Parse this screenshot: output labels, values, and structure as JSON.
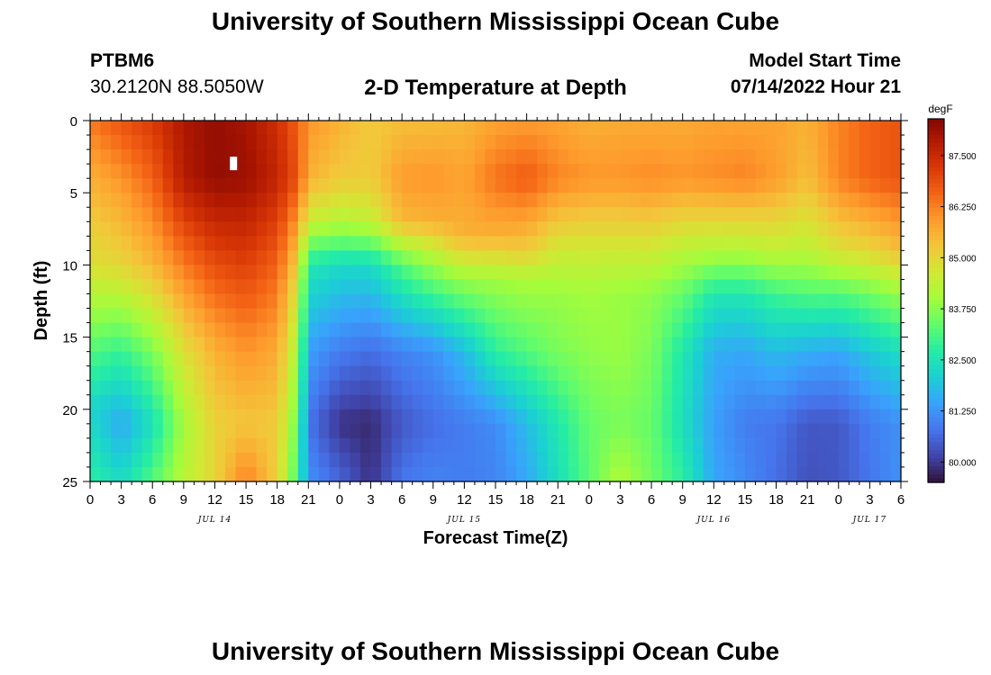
{
  "header": {
    "title": "University of Southern Mississippi Ocean Cube",
    "station_id": "PTBM6",
    "station_coords": "30.2120N  88.5050W",
    "plot_title": "2-D Temperature at Depth",
    "model_start_label": "Model Start Time",
    "model_start_value": "07/14/2022 Hour 21"
  },
  "footer": {
    "title": "University of Southern Mississippi Ocean Cube"
  },
  "chart_data": {
    "type": "heatmap",
    "title": "2-D Temperature at Depth",
    "xlabel": "Forecast Time(Z)",
    "ylabel": "Depth (ft)",
    "colorbar_label": "degF",
    "colorbar_ticks": [
      "87.500",
      "86.250",
      "85.000",
      "83.750",
      "82.500",
      "81.250",
      "80.000"
    ],
    "colorbar_values": [
      87.5,
      86.25,
      85.0,
      83.75,
      82.5,
      81.25,
      80.0
    ],
    "value_range": [
      79.5,
      88.5
    ],
    "x_tick_labels": [
      "0",
      "3",
      "6",
      "9",
      "12",
      "15",
      "18",
      "21",
      "0",
      "3",
      "6",
      "9",
      "12",
      "15",
      "18",
      "21",
      "0",
      "3",
      "6",
      "9",
      "12",
      "15",
      "18",
      "21",
      "0",
      "3",
      "6"
    ],
    "x_date_labels": [
      "JUL 14",
      "JUL 15",
      "JUL 16",
      "JUL 17"
    ],
    "x_date_tick_index": [
      4,
      12,
      20,
      25
    ],
    "y_tick_labels": [
      "0",
      "5",
      "10",
      "15",
      "20",
      "25"
    ],
    "ylim": [
      0,
      25
    ],
    "y_reversed": true,
    "colors": [
      "#30123b",
      "#4145ab",
      "#4675ed",
      "#39a2fc",
      "#1bcfd4",
      "#24eca6",
      "#61fc6c",
      "#a4fc3b",
      "#d1e834",
      "#f3c63a",
      "#fe9b2d",
      "#f36315",
      "#d93806",
      "#b11901",
      "#7a0403"
    ],
    "columns": [
      {
        "x": 0,
        "profile": [
          [
            0,
            86.3
          ],
          [
            4,
            85.6
          ],
          [
            10,
            84.8
          ],
          [
            16,
            83.2
          ],
          [
            20,
            82.2
          ],
          [
            25,
            82.8
          ]
        ]
      },
      {
        "x": 3,
        "profile": [
          [
            0,
            86.8
          ],
          [
            4,
            86.0
          ],
          [
            10,
            85.0
          ],
          [
            16,
            82.9
          ],
          [
            21,
            81.5
          ],
          [
            25,
            82.3
          ]
        ]
      },
      {
        "x": 6,
        "profile": [
          [
            0,
            87.2
          ],
          [
            4,
            86.6
          ],
          [
            10,
            85.5
          ],
          [
            16,
            83.6
          ],
          [
            21,
            82.4
          ],
          [
            25,
            83.2
          ]
        ]
      },
      {
        "x": 9,
        "profile": [
          [
            0,
            87.9
          ],
          [
            4,
            87.8
          ],
          [
            10,
            86.3
          ],
          [
            16,
            84.8
          ],
          [
            21,
            84.0
          ],
          [
            25,
            84.3
          ]
        ]
      },
      {
        "x": 12,
        "profile": [
          [
            0,
            88.2
          ],
          [
            4,
            88.2
          ],
          [
            10,
            86.9
          ],
          [
            16,
            85.6
          ],
          [
            21,
            85.1
          ],
          [
            25,
            85.0
          ]
        ]
      },
      {
        "x": 15,
        "profile": [
          [
            0,
            88.0
          ],
          [
            4,
            88.1
          ],
          [
            10,
            87.1
          ],
          [
            16,
            86.0
          ],
          [
            21,
            85.3
          ],
          [
            25,
            86.3
          ]
        ]
      },
      {
        "x": 18,
        "profile": [
          [
            0,
            87.4
          ],
          [
            4,
            87.6
          ],
          [
            10,
            86.6
          ],
          [
            16,
            85.7
          ],
          [
            21,
            85.2
          ],
          [
            25,
            85.1
          ]
        ]
      },
      {
        "x": 20,
        "profile": [
          [
            0,
            86.6
          ],
          [
            4,
            86.8
          ],
          [
            8,
            85.6
          ],
          [
            12,
            84.6
          ],
          [
            16,
            84.0
          ],
          [
            21,
            83.4
          ],
          [
            25,
            83.0
          ]
        ]
      },
      {
        "x": 21,
        "profile": [
          [
            0,
            86.0
          ],
          [
            4,
            85.6
          ],
          [
            7,
            84.5
          ],
          [
            10,
            82.6
          ],
          [
            16,
            81.4
          ],
          [
            21,
            80.8
          ],
          [
            25,
            81.2
          ]
        ]
      },
      {
        "x": 24,
        "profile": [
          [
            0,
            85.6
          ],
          [
            4,
            85.2
          ],
          [
            7,
            84.2
          ],
          [
            10,
            82.3
          ],
          [
            16,
            80.9
          ],
          [
            21,
            79.9
          ],
          [
            25,
            80.6
          ]
        ]
      },
      {
        "x": 27,
        "profile": [
          [
            0,
            85.2
          ],
          [
            4,
            85.2
          ],
          [
            7,
            84.4
          ],
          [
            10,
            82.3
          ],
          [
            16,
            80.7
          ],
          [
            21,
            79.8
          ],
          [
            25,
            79.9
          ]
        ]
      },
      {
        "x": 30,
        "profile": [
          [
            0,
            85.4
          ],
          [
            4,
            85.9
          ],
          [
            7,
            85.5
          ],
          [
            10,
            83.2
          ],
          [
            16,
            81.0
          ],
          [
            21,
            80.4
          ],
          [
            25,
            80.8
          ]
        ]
      },
      {
        "x": 33,
        "profile": [
          [
            0,
            85.4
          ],
          [
            4,
            86.0
          ],
          [
            7,
            85.6
          ],
          [
            10,
            83.9
          ],
          [
            16,
            81.2
          ],
          [
            21,
            80.7
          ],
          [
            25,
            81.0
          ]
        ]
      },
      {
        "x": 36,
        "profile": [
          [
            0,
            85.5
          ],
          [
            4,
            85.8
          ],
          [
            8,
            85.6
          ],
          [
            11,
            83.9
          ],
          [
            16,
            81.8
          ],
          [
            21,
            80.9
          ],
          [
            25,
            80.9
          ]
        ]
      },
      {
        "x": 39,
        "profile": [
          [
            0,
            85.8
          ],
          [
            4,
            86.4
          ],
          [
            8,
            85.6
          ],
          [
            11,
            84.0
          ],
          [
            16,
            82.8
          ],
          [
            21,
            81.1
          ],
          [
            25,
            81.0
          ]
        ]
      },
      {
        "x": 42,
        "profile": [
          [
            0,
            85.9
          ],
          [
            4,
            86.7
          ],
          [
            9,
            85.2
          ],
          [
            11,
            84.1
          ],
          [
            16,
            83.2
          ],
          [
            21,
            81.8
          ],
          [
            25,
            81.5
          ]
        ]
      },
      {
        "x": 45,
        "profile": [
          [
            0,
            85.8
          ],
          [
            4,
            86.2
          ],
          [
            9,
            84.6
          ],
          [
            12,
            83.9
          ],
          [
            16,
            83.6
          ],
          [
            21,
            82.6
          ],
          [
            25,
            82.4
          ]
        ]
      },
      {
        "x": 48,
        "profile": [
          [
            0,
            85.6
          ],
          [
            4,
            86.0
          ],
          [
            9,
            84.6
          ],
          [
            12,
            84.0
          ],
          [
            16,
            83.8
          ],
          [
            21,
            83.4
          ],
          [
            25,
            83.3
          ]
        ]
      },
      {
        "x": 51,
        "profile": [
          [
            0,
            85.7
          ],
          [
            4,
            86.0
          ],
          [
            9,
            84.6
          ],
          [
            12,
            83.9
          ],
          [
            16,
            83.9
          ],
          [
            21,
            83.6
          ],
          [
            25,
            84.2
          ]
        ]
      },
      {
        "x": 54,
        "profile": [
          [
            0,
            85.7
          ],
          [
            4,
            86.1
          ],
          [
            9,
            84.6
          ],
          [
            12,
            83.8
          ],
          [
            16,
            83.6
          ],
          [
            21,
            83.4
          ],
          [
            25,
            83.5
          ]
        ]
      },
      {
        "x": 57,
        "profile": [
          [
            0,
            85.7
          ],
          [
            4,
            86.0
          ],
          [
            9,
            84.3
          ],
          [
            12,
            83.4
          ],
          [
            16,
            82.6
          ],
          [
            21,
            82.4
          ],
          [
            25,
            82.8
          ]
        ]
      },
      {
        "x": 60,
        "profile": [
          [
            0,
            85.8
          ],
          [
            4,
            86.1
          ],
          [
            9,
            84.2
          ],
          [
            12,
            82.6
          ],
          [
            16,
            81.6
          ],
          [
            21,
            81.4
          ],
          [
            25,
            81.5
          ]
        ]
      },
      {
        "x": 63,
        "profile": [
          [
            0,
            85.8
          ],
          [
            4,
            86.2
          ],
          [
            9,
            84.2
          ],
          [
            12,
            82.6
          ],
          [
            16,
            81.5
          ],
          [
            21,
            80.9
          ],
          [
            25,
            81.1
          ]
        ]
      },
      {
        "x": 66,
        "profile": [
          [
            0,
            85.8
          ],
          [
            4,
            85.9
          ],
          [
            9,
            84.4
          ],
          [
            12,
            83.0
          ],
          [
            16,
            81.8
          ],
          [
            21,
            80.8
          ],
          [
            25,
            80.7
          ]
        ]
      },
      {
        "x": 69,
        "profile": [
          [
            0,
            85.6
          ],
          [
            4,
            85.4
          ],
          [
            9,
            84.3
          ],
          [
            12,
            83.2
          ],
          [
            16,
            81.6
          ],
          [
            21,
            80.4
          ],
          [
            25,
            80.3
          ]
        ]
      },
      {
        "x": 72,
        "profile": [
          [
            0,
            86.2
          ],
          [
            4,
            86.2
          ],
          [
            9,
            84.8
          ],
          [
            12,
            83.2
          ],
          [
            16,
            81.5
          ],
          [
            21,
            80.4
          ],
          [
            25,
            80.4
          ]
        ]
      },
      {
        "x": 75,
        "profile": [
          [
            0,
            86.6
          ],
          [
            4,
            86.6
          ],
          [
            9,
            85.0
          ],
          [
            12,
            83.5
          ],
          [
            16,
            82.0
          ],
          [
            21,
            80.9
          ],
          [
            25,
            80.8
          ]
        ]
      },
      {
        "x": 78,
        "profile": [
          [
            0,
            86.8
          ],
          [
            4,
            86.8
          ],
          [
            9,
            85.4
          ],
          [
            12,
            83.9
          ],
          [
            16,
            82.4
          ],
          [
            21,
            81.2
          ],
          [
            25,
            81.2
          ]
        ]
      }
    ],
    "marker": {
      "x": 13.8,
      "y": 3.0
    }
  }
}
